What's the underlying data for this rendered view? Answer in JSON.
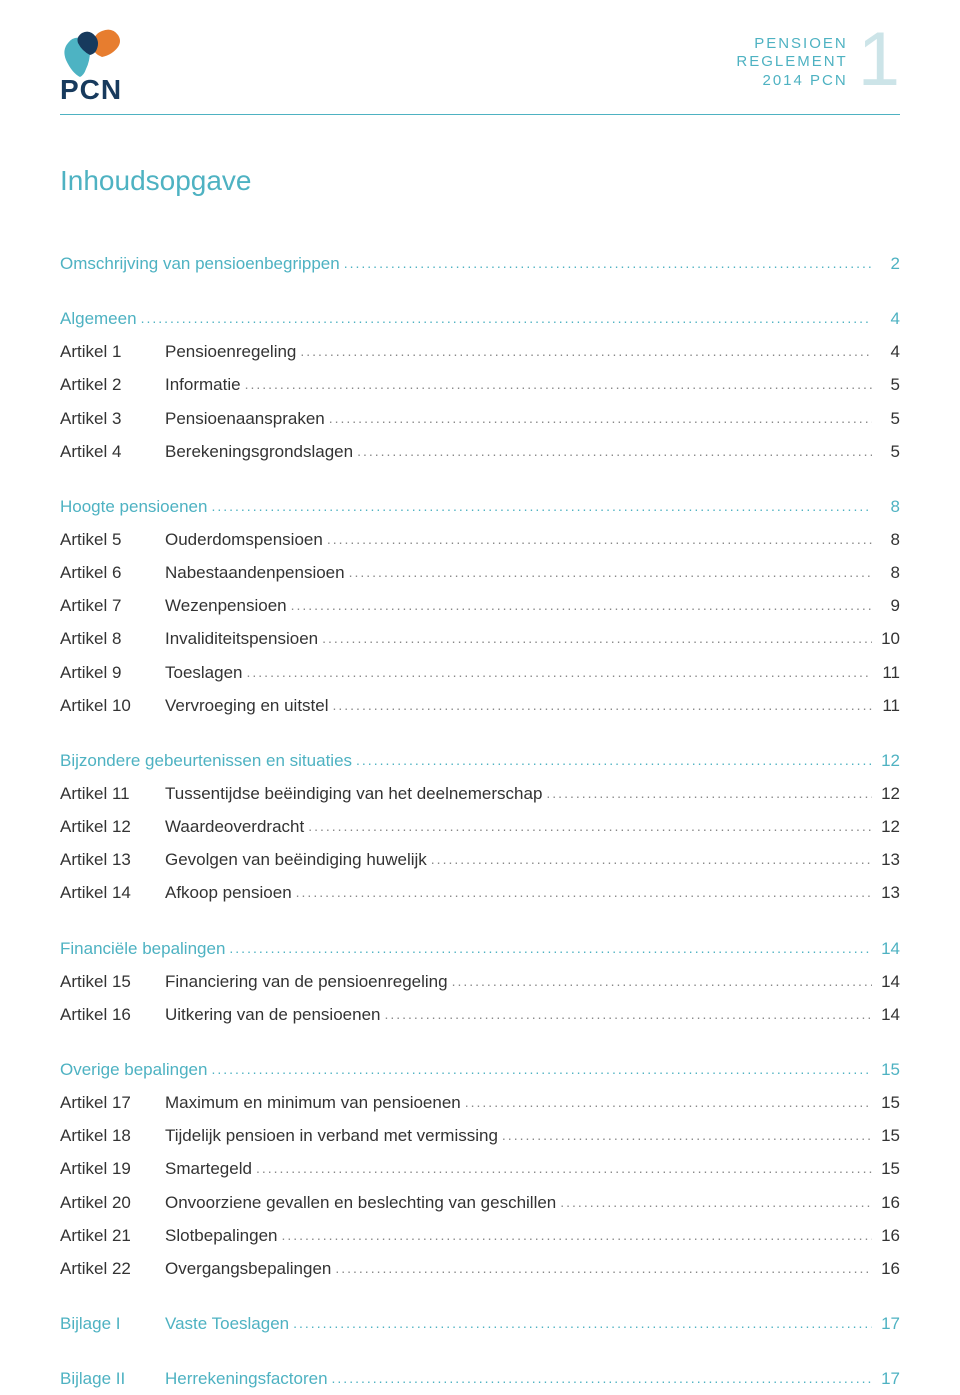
{
  "header": {
    "logo_text": "PCN",
    "lines": [
      "PENSIOEN",
      "REGLEMENT",
      "2014 PCN"
    ],
    "page_number": "1"
  },
  "title": "Inhoudsopgave",
  "colors": {
    "accent": "#4eb2c2",
    "accent_light": "#cce4e8",
    "text": "#333333",
    "logo_navy": "#173a5d",
    "logo_orange": "#e77d2f",
    "logo_teal": "#4db3c3"
  },
  "toc": [
    {
      "type": "section",
      "label": "",
      "subtitle": "Omschrijving van pensioenbegrippen",
      "page": "2"
    },
    {
      "type": "section",
      "label": "",
      "subtitle": "Algemeen",
      "page": "4"
    },
    {
      "type": "item",
      "label": "Artikel 1",
      "subtitle": "Pensioenregeling",
      "page": "4"
    },
    {
      "type": "item",
      "label": "Artikel 2",
      "subtitle": "Informatie",
      "page": "5"
    },
    {
      "type": "item",
      "label": "Artikel 3",
      "subtitle": "Pensioenaanspraken",
      "page": "5"
    },
    {
      "type": "item",
      "label": "Artikel 4",
      "subtitle": "Berekeningsgrondslagen",
      "page": "5"
    },
    {
      "type": "section",
      "label": "",
      "subtitle": "Hoogte pensioenen",
      "page": "8"
    },
    {
      "type": "item",
      "label": "Artikel 5",
      "subtitle": "Ouderdomspensioen",
      "page": "8"
    },
    {
      "type": "item",
      "label": "Artikel 6",
      "subtitle": "Nabestaandenpensioen",
      "page": "8"
    },
    {
      "type": "item",
      "label": "Artikel 7",
      "subtitle": "Wezenpensioen",
      "page": "9"
    },
    {
      "type": "item",
      "label": "Artikel 8",
      "subtitle": "Invaliditeitspensioen",
      "page": "10"
    },
    {
      "type": "item",
      "label": "Artikel 9",
      "subtitle": "Toeslagen",
      "page": "11"
    },
    {
      "type": "item",
      "label": "Artikel 10",
      "subtitle": "Vervroeging en uitstel",
      "page": "11"
    },
    {
      "type": "section",
      "label": "",
      "subtitle": "Bijzondere gebeurtenissen en situaties",
      "page": "12"
    },
    {
      "type": "item",
      "label": "Artikel 11",
      "subtitle": "Tussentijdse beëindiging van het deelnemerschap",
      "page": "12"
    },
    {
      "type": "item",
      "label": "Artikel 12",
      "subtitle": "Waardeoverdracht",
      "page": "12"
    },
    {
      "type": "item",
      "label": "Artikel 13",
      "subtitle": "Gevolgen van beëindiging huwelijk",
      "page": "13"
    },
    {
      "type": "item",
      "label": "Artikel 14",
      "subtitle": "Afkoop pensioen",
      "page": "13"
    },
    {
      "type": "section",
      "label": "",
      "subtitle": "Financiële bepalingen",
      "page": "14"
    },
    {
      "type": "item",
      "label": "Artikel 15",
      "subtitle": "Financiering van de pensioenregeling",
      "page": "14"
    },
    {
      "type": "item",
      "label": "Artikel 16",
      "subtitle": "Uitkering van de pensioenen",
      "page": "14"
    },
    {
      "type": "section",
      "label": "",
      "subtitle": "Overige bepalingen",
      "page": "15"
    },
    {
      "type": "item",
      "label": "Artikel 17",
      "subtitle": "Maximum en minimum van pensioenen",
      "page": "15"
    },
    {
      "type": "item",
      "label": "Artikel 18",
      "subtitle": "Tijdelijk pensioen in verband met vermissing",
      "page": "15"
    },
    {
      "type": "item",
      "label": "Artikel 19",
      "subtitle": "Smartegeld",
      "page": "15"
    },
    {
      "type": "item",
      "label": "Artikel 20",
      "subtitle": "Onvoorziene gevallen en beslechting van geschillen",
      "page": "16"
    },
    {
      "type": "item",
      "label": "Artikel 21",
      "subtitle": "Slotbepalingen",
      "page": "16"
    },
    {
      "type": "item",
      "label": "Artikel 22",
      "subtitle": "Overgangsbepalingen",
      "page": "16"
    },
    {
      "type": "section",
      "label": "Bijlage I",
      "subtitle": "Vaste Toeslagen",
      "page": "17",
      "has_label": true
    },
    {
      "type": "section",
      "label": "Bijlage II",
      "subtitle": "Herrekeningsfactoren",
      "page": "17",
      "has_label": true
    }
  ]
}
